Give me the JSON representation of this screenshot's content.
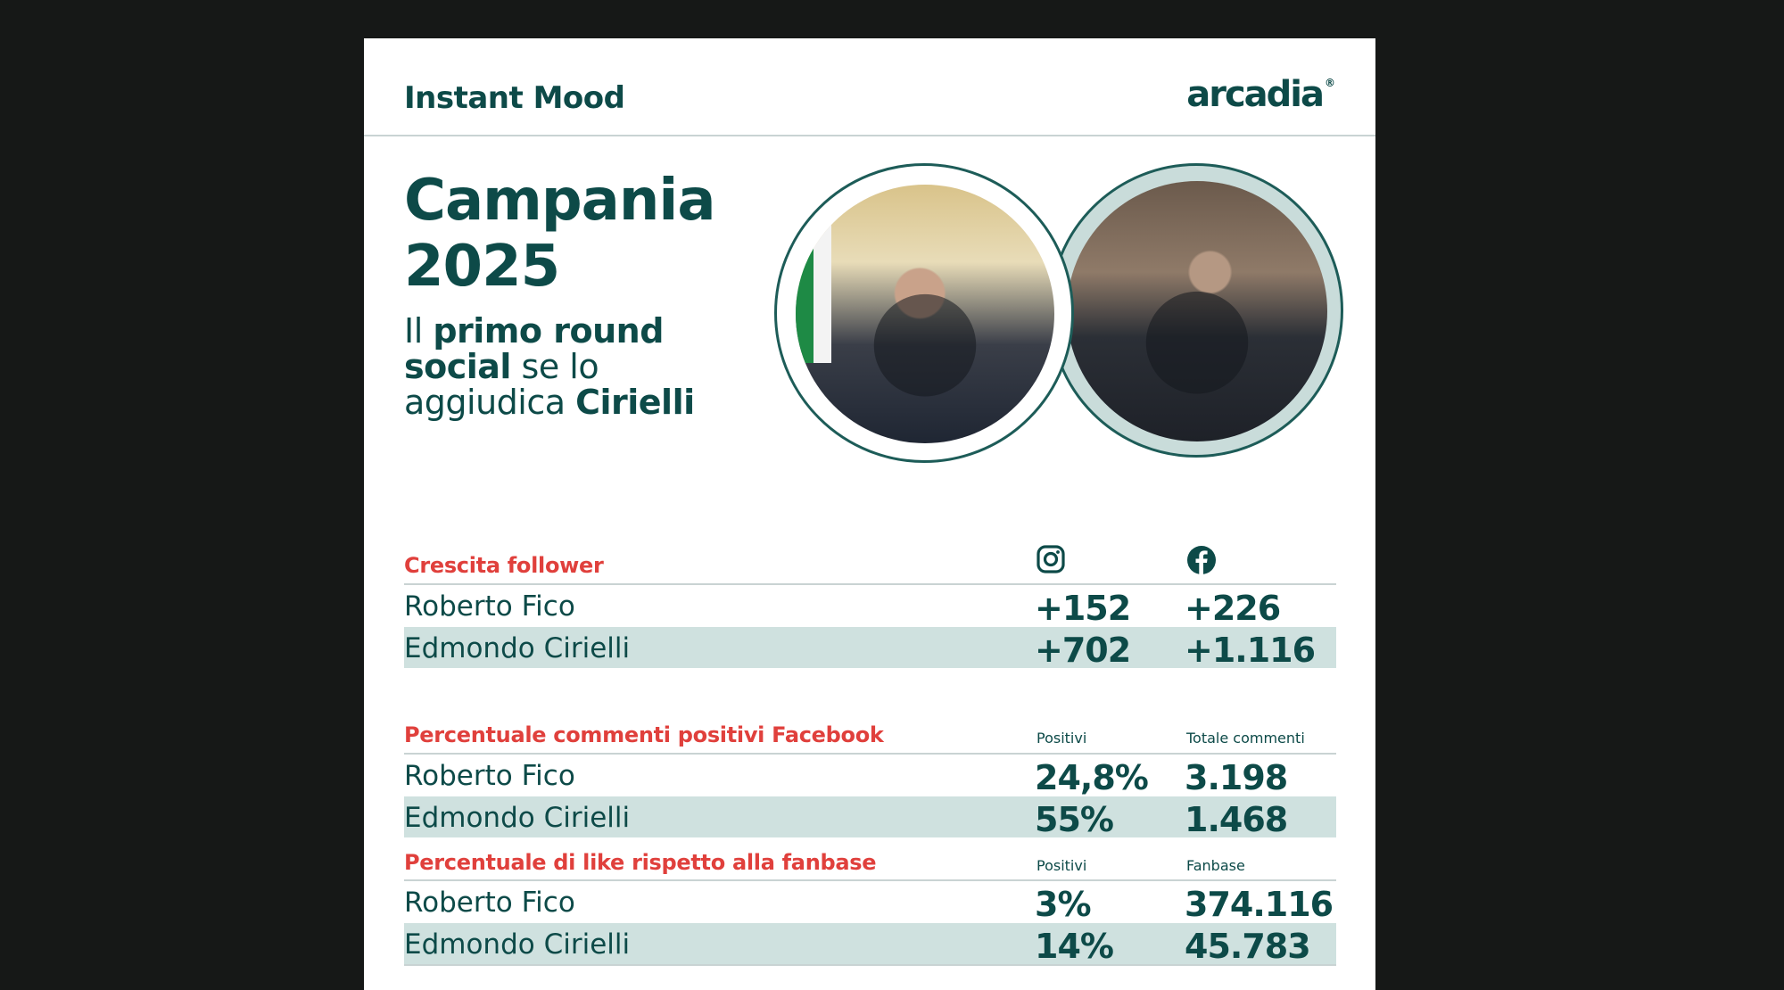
{
  "header": {
    "title": "Instant Mood",
    "logo": "arcadia",
    "logo_mark": "®"
  },
  "hero": {
    "title_line1": "Campania",
    "title_line2": "2025",
    "subtitle": {
      "p1": "Il ",
      "b1": "primo round",
      "p2": "",
      "b2": "social",
      "p3": " se lo",
      "p4": "aggiudica ",
      "b3": "Cirielli"
    }
  },
  "photos": [
    {
      "name": "photo-roberto-fico"
    },
    {
      "name": "photo-edmondo-cirielli"
    }
  ],
  "sections": {
    "followers": {
      "label": "Crescita follower",
      "icons": [
        "instagram-icon",
        "facebook-icon"
      ],
      "rows": [
        {
          "name": "Roberto Fico",
          "v1": "+152",
          "v2": "+226"
        },
        {
          "name": "Edmondo Cirielli",
          "v1": "+702",
          "v2": "+1.116"
        }
      ]
    },
    "comments": {
      "label": "Percentuale commenti positivi Facebook",
      "col1": "Positivi",
      "col2": "Totale commenti",
      "rows": [
        {
          "name": "Roberto Fico",
          "v1": "24,8%",
          "v2": "3.198"
        },
        {
          "name": "Edmondo Cirielli",
          "v1": "55%",
          "v2": "1.468"
        }
      ]
    },
    "likes": {
      "label": "Percentuale di like rispetto alla fanbase",
      "col1": "Positivi",
      "col2": "Fanbase",
      "rows": [
        {
          "name": "Roberto Fico",
          "v1": "3%",
          "v2": "374.116"
        },
        {
          "name": "Edmondo Cirielli",
          "v1": "14%",
          "v2": "45.783"
        }
      ]
    }
  },
  "colors": {
    "background": "#161817",
    "brand_teal": "#0d4a48",
    "accent_red": "#e0403c",
    "row_highlight": "#cfe1df"
  }
}
